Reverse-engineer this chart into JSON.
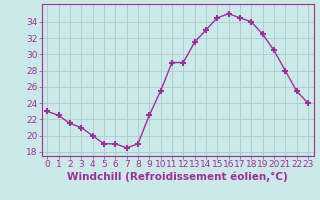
{
  "hours": [
    0,
    1,
    2,
    3,
    4,
    5,
    6,
    7,
    8,
    9,
    10,
    11,
    12,
    13,
    14,
    15,
    16,
    17,
    18,
    19,
    20,
    21,
    22,
    23
  ],
  "values": [
    23.0,
    22.5,
    21.5,
    21.0,
    20.0,
    19.0,
    19.0,
    18.5,
    19.0,
    22.5,
    25.5,
    29.0,
    29.0,
    31.5,
    33.0,
    34.5,
    35.0,
    34.5,
    34.0,
    32.5,
    30.5,
    28.0,
    25.5,
    24.0
  ],
  "line_color": "#993399",
  "marker": "+",
  "bg_color": "#cce8e8",
  "grid_color": "#aacccc",
  "axis_color": "#993399",
  "xlabel": "Windchill (Refroidissement éolien,°C)",
  "ylim": [
    17.5,
    36.2
  ],
  "xlim": [
    -0.5,
    23.5
  ],
  "yticks": [
    18,
    20,
    22,
    24,
    26,
    28,
    30,
    32,
    34
  ],
  "xticks": [
    0,
    1,
    2,
    3,
    4,
    5,
    6,
    7,
    8,
    9,
    10,
    11,
    12,
    13,
    14,
    15,
    16,
    17,
    18,
    19,
    20,
    21,
    22,
    23
  ],
  "tick_fontsize": 6.5,
  "xlabel_fontsize": 7.5,
  "marker_size": 4,
  "linewidth": 1.0
}
